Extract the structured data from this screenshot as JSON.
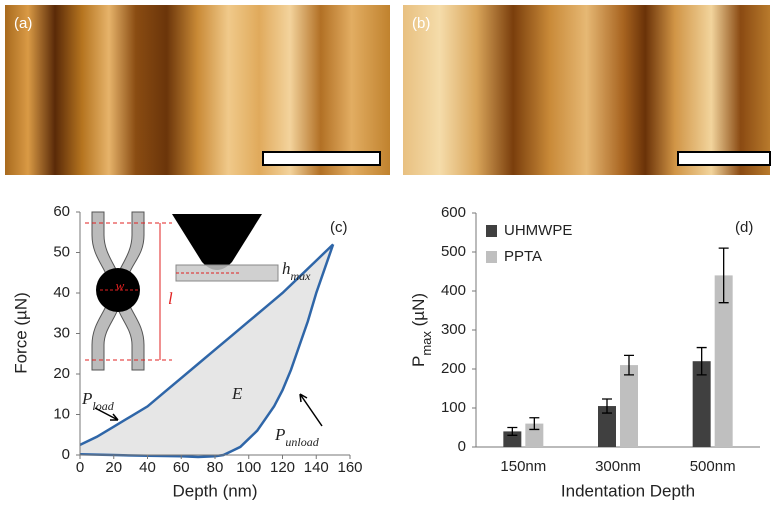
{
  "image_panels": [
    {
      "label": "(a)"
    },
    {
      "label": "(b)"
    }
  ],
  "chart_data": [
    {
      "type": "line",
      "xlabel": "Depth (nm)",
      "ylabel": "Force (µN)",
      "xlim": [
        0,
        160
      ],
      "xticks": [
        0,
        20,
        40,
        60,
        80,
        100,
        120,
        140,
        160
      ],
      "ylim": [
        0,
        60
      ],
      "yticks": [
        0,
        10,
        20,
        30,
        40,
        50,
        60
      ],
      "grid": false,
      "fill_color": "#e6e6e6",
      "series": [
        {
          "color": "#2f66a8",
          "x": [
            0,
            10,
            20,
            30,
            40,
            50,
            60,
            70,
            80,
            90,
            100,
            110,
            120,
            130,
            140,
            150
          ],
          "values": [
            2.5,
            4.5,
            7,
            9.5,
            12,
            15.5,
            19,
            22.5,
            26,
            29.5,
            33,
            36.5,
            40,
            44,
            48,
            52
          ]
        },
        {
          "color": "#2f66a8",
          "x": [
            150,
            145,
            140,
            135,
            130,
            125,
            120,
            115,
            110,
            105,
            100,
            95,
            90,
            85,
            80,
            70,
            60,
            40,
            20,
            0
          ],
          "values": [
            52,
            46,
            40,
            33,
            27,
            21,
            16,
            12,
            9,
            6,
            4,
            2,
            1,
            0,
            -0.3,
            -0.5,
            -0.3,
            -0.2,
            0,
            0.2
          ]
        }
      ],
      "annotations": {
        "panel": "(c)",
        "area": "E",
        "load": {
          "base": "P",
          "sub": "load"
        },
        "unload": {
          "base": "P",
          "sub": "unload"
        },
        "length": "l",
        "width": "w",
        "depth": {
          "base": "h",
          "sub": "max"
        }
      }
    },
    {
      "type": "bar",
      "xlabel": "Indentation Depth",
      "ylabel": {
        "base": "P",
        "sub": "max",
        "rest": " (µN)"
      },
      "categories": [
        "150nm",
        "300nm",
        "500nm"
      ],
      "ylim": [
        0,
        600
      ],
      "yticks": [
        0,
        100,
        200,
        300,
        400,
        500,
        600
      ],
      "grid": false,
      "legend": "top-left",
      "series": [
        {
          "name": "UHMWPE",
          "color": "#404040",
          "values": [
            40,
            105,
            220
          ],
          "errors": [
            10,
            18,
            35
          ]
        },
        {
          "name": "PPTA",
          "color": "#bfbfbf",
          "values": [
            60,
            210,
            440
          ],
          "errors": [
            15,
            25,
            70
          ]
        }
      ],
      "annotations": {
        "panel": "(d)"
      }
    }
  ]
}
